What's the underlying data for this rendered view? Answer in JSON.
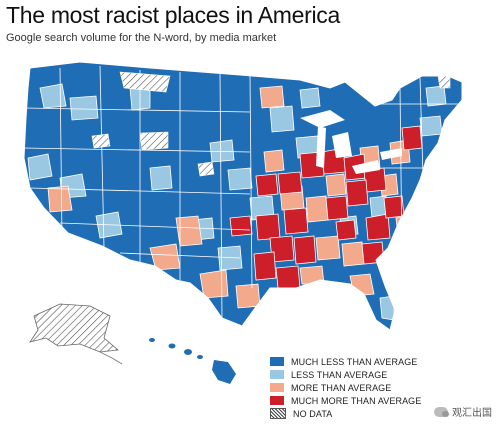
{
  "title": "The most racist places in America",
  "subtitle": "Google search volume for the N-word, by media market",
  "colors": {
    "much_less": "#1f6db5",
    "less": "#9ac7e2",
    "more": "#f2a98c",
    "much_more": "#cc1f2a",
    "border": "#ffffff",
    "nodata": "#444444"
  },
  "legend": [
    {
      "label": "MUCH LESS THAN AVERAGE",
      "color": "#1f6db5"
    },
    {
      "label": "LESS THAN AVERAGE",
      "color": "#9ac7e2"
    },
    {
      "label": "MORE THAN AVERAGE",
      "color": "#f2a98c"
    },
    {
      "label": "MUCH MORE THAN AVERAGE",
      "color": "#cc1f2a"
    },
    {
      "label": "NO DATA",
      "color": "hatch"
    }
  ],
  "watermark": "观汇出国"
}
